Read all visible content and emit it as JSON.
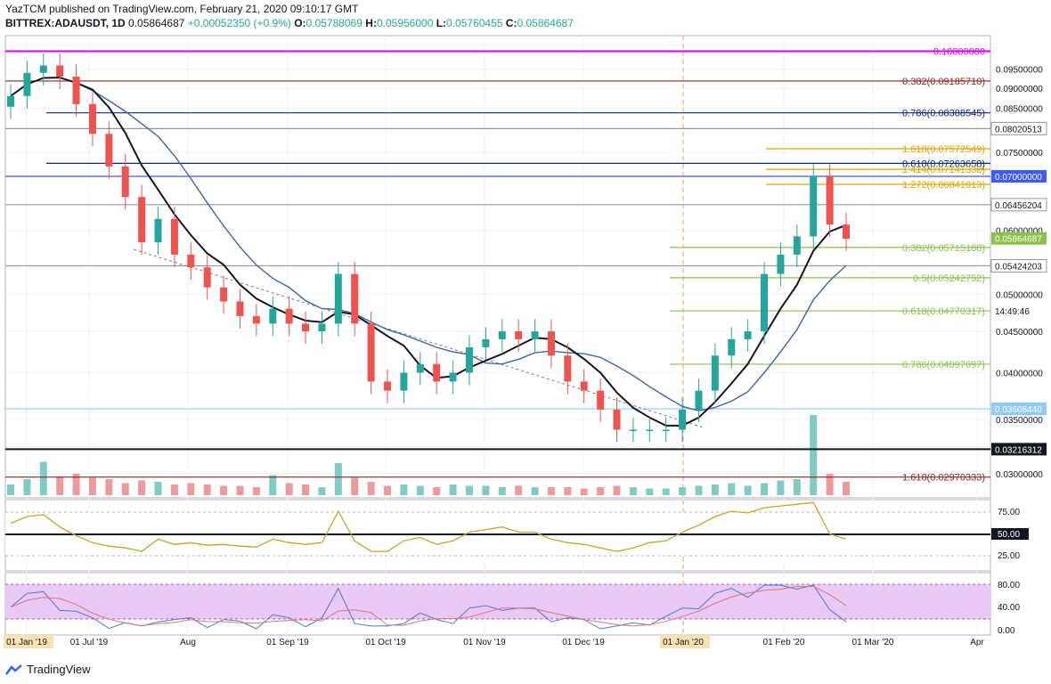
{
  "header": {
    "publisher_line": "YazTCM published on TradingView.com, February 21, 2020 09:10:17 GMT",
    "symbol": "BITTREX:ADAUSDT, 1D",
    "last": "0.05864687",
    "change": "+0.00052350 (+0.9%)",
    "o_label": "O:",
    "o_value": "0.05788069",
    "h_label": "H:",
    "h_value": "0.05956000",
    "l_label": "L:",
    "l_value": "0.05760455",
    "c_label": "C:",
    "c_value": "0.05864687"
  },
  "colors": {
    "up": "#26a69a",
    "down": "#ef5350",
    "sma_black": "#131722",
    "sma_blue": "#3a65a8",
    "fib_gold": "#e0a400",
    "fib_green": "#8bc34a",
    "fib_red": "#8b2a1e",
    "navy": "#0d2d7a",
    "magenta": "#d500f9",
    "blue_line": "#3d5afe",
    "rsi_gold": "#c9a227",
    "stoch_fill": "#e8c8f5"
  },
  "price_axis": {
    "ticks": [
      "0.09500000",
      "0.09000000",
      "0.08500000",
      "0.07500000",
      "0.06000000",
      "0.05000000",
      "0.04500000",
      "0.04000000",
      "0.03500000",
      "0.03000000"
    ]
  },
  "levels": [
    {
      "price": 0.1,
      "label": "0.10000000",
      "kind": "magenta"
    },
    {
      "price": 0.0918571,
      "label": "0.382(0.09185710)",
      "kind": "red"
    },
    {
      "price": 0.08388545,
      "label": "0.786(0.08388545)",
      "kind": "navy"
    },
    {
      "price": 0.08020513,
      "label": "0.08020513",
      "kind": "grey_box"
    },
    {
      "price": 0.07572549,
      "label": "1.618(0.07572549)",
      "kind": "gold"
    },
    {
      "price": 0.07263658,
      "label": "0.618(0.07263658)",
      "kind": "navy"
    },
    {
      "price": 0.07141338,
      "label": "1.414(0.07141338)",
      "kind": "gold"
    },
    {
      "price": 0.07,
      "label": "0.07000000",
      "kind": "blue_box"
    },
    {
      "price": 0.06841013,
      "label": "1.272(0.06841013)",
      "kind": "gold"
    },
    {
      "price": 0.06456204,
      "label": "0.06456204",
      "kind": "grey_box"
    },
    {
      "price": 0.05864687,
      "label": "0.05864687",
      "kind": "green_box"
    },
    {
      "price": 0.05715188,
      "label": "0.382(0.05715188)",
      "kind": "green"
    },
    {
      "price": 0.05424203,
      "label": "0.05424203",
      "kind": "grey_box"
    },
    {
      "price": 0.05242752,
      "label": "0.5(0.05242752)",
      "kind": "green"
    },
    {
      "price": 0.04770317,
      "label": "0.618(0.04770317)",
      "kind": "green"
    },
    {
      "price": 0.04097697,
      "label": "0.786(0.04097697)",
      "kind": "green"
    },
    {
      "price": 0.0360844,
      "label": "0.03608440",
      "kind": "lightblue_box"
    },
    {
      "price": 0.03216312,
      "label": "0.03216312",
      "kind": "black_box"
    },
    {
      "price": 0.02970333,
      "label": "1.618(0.02970333)",
      "kind": "red"
    }
  ],
  "countdown": "14:49:46",
  "time_axis": [
    "01 Jan '19",
    "01 Jul '19",
    "Aug",
    "01 Sep '19",
    "01 Oct '19",
    "01 Nov '19",
    "01 Dec '19",
    "01 Jan '20",
    "01 Feb '20",
    "01 Mar '20",
    "Apr"
  ],
  "rsi_axis": [
    "75.00",
    "50.00",
    "25.00"
  ],
  "stoch_axis": [
    "80.00",
    "40.00",
    "0.00"
  ],
  "footer": {
    "brand": "TradingView"
  },
  "chart_data": {
    "type": "candlestick",
    "title": "BITTREX:ADAUSDT, 1D",
    "y_scale": "log",
    "ylim": [
      0.0285,
      0.104
    ],
    "x": [
      "2019-06-11",
      "2019-06-18",
      "2019-06-25",
      "2019-07-01",
      "2019-07-05",
      "2019-07-10",
      "2019-07-15",
      "2019-07-20",
      "2019-07-25",
      "2019-08-01",
      "2019-08-05",
      "2019-08-10",
      "2019-08-15",
      "2019-08-20",
      "2019-08-25",
      "2019-09-01",
      "2019-09-05",
      "2019-09-10",
      "2019-09-15",
      "2019-09-20",
      "2019-09-24",
      "2019-09-28",
      "2019-10-01",
      "2019-10-05",
      "2019-10-10",
      "2019-10-15",
      "2019-10-20",
      "2019-10-25",
      "2019-11-01",
      "2019-11-05",
      "2019-11-10",
      "2019-11-15",
      "2019-11-20",
      "2019-11-25",
      "2019-12-01",
      "2019-12-05",
      "2019-12-10",
      "2019-12-15",
      "2019-12-20",
      "2019-12-25",
      "2020-01-01",
      "2020-01-05",
      "2020-01-10",
      "2020-01-15",
      "2020-01-20",
      "2020-01-25",
      "2020-02-01",
      "2020-02-05",
      "2020-02-10",
      "2020-02-14",
      "2020-02-17",
      "2020-02-21"
    ],
    "close": [
      0.088,
      0.094,
      0.096,
      0.093,
      0.086,
      0.079,
      0.072,
      0.066,
      0.058,
      0.062,
      0.056,
      0.054,
      0.051,
      0.049,
      0.047,
      0.046,
      0.048,
      0.046,
      0.045,
      0.046,
      0.053,
      0.046,
      0.039,
      0.038,
      0.04,
      0.041,
      0.039,
      0.04,
      0.043,
      0.044,
      0.045,
      0.044,
      0.045,
      0.042,
      0.039,
      0.038,
      0.036,
      0.034,
      0.034,
      0.034,
      0.034,
      0.036,
      0.038,
      0.042,
      0.044,
      0.045,
      0.053,
      0.056,
      0.059,
      0.07,
      0.061,
      0.0586
    ],
    "volume": [
      0.8,
      1.2,
      2.5,
      1.4,
      1.6,
      1.3,
      1.2,
      0.9,
      1.1,
      1.0,
      0.8,
      0.9,
      0.8,
      0.7,
      0.7,
      0.6,
      1.5,
      0.9,
      0.8,
      0.6,
      2.4,
      1.3,
      1.0,
      0.7,
      0.8,
      0.7,
      0.6,
      0.8,
      0.7,
      0.7,
      0.6,
      0.7,
      0.6,
      0.6,
      0.6,
      0.5,
      0.6,
      0.7,
      0.6,
      0.5,
      0.5,
      0.6,
      0.7,
      0.8,
      0.9,
      0.7,
      0.9,
      1.1,
      1.2,
      6.0,
      1.6,
      1.0
    ],
    "series": [
      {
        "name": "RSI",
        "values": [
          62,
          70,
          72,
          58,
          48,
          40,
          36,
          34,
          30,
          44,
          38,
          40,
          37,
          38,
          36,
          35,
          44,
          40,
          38,
          40,
          76,
          42,
          30,
          30,
          42,
          46,
          38,
          42,
          52,
          55,
          58,
          52,
          52,
          44,
          40,
          38,
          34,
          30,
          34,
          40,
          42,
          52,
          60,
          70,
          76,
          74,
          80,
          82,
          84,
          86,
          50,
          44
        ]
      }
    ]
  }
}
